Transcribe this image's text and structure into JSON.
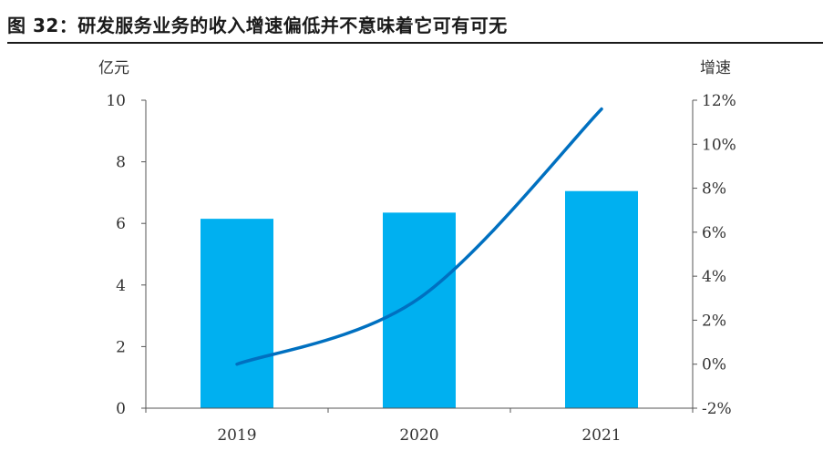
{
  "title": "图 32：研发服务业务的收入增速偏低并不意味着它可有可无",
  "colors": {
    "bar": "#00B0F0",
    "line": "#0070C0",
    "axis": "#555555",
    "text": "#333333"
  },
  "chart_data": {
    "type": "bar",
    "categories": [
      "2019",
      "2020",
      "2021"
    ],
    "series": [
      {
        "type": "bar",
        "axis": "left",
        "values": [
          6.15,
          6.35,
          7.05
        ]
      },
      {
        "type": "line",
        "axis": "right",
        "values": [
          0.0,
          3.0,
          11.6
        ],
        "smooth": true
      }
    ],
    "ylabel_left": "亿元",
    "ylabel_right": "增速",
    "ylim_left": [
      0,
      10
    ],
    "yticks_left": [
      "0",
      "2",
      "4",
      "6",
      "8",
      "10"
    ],
    "ylim_right": [
      -2,
      12
    ],
    "yticks_right": [
      "-2%",
      "0%",
      "2%",
      "4%",
      "6%",
      "8%",
      "10%",
      "12%"
    ],
    "grid": false,
    "legend": "none"
  }
}
